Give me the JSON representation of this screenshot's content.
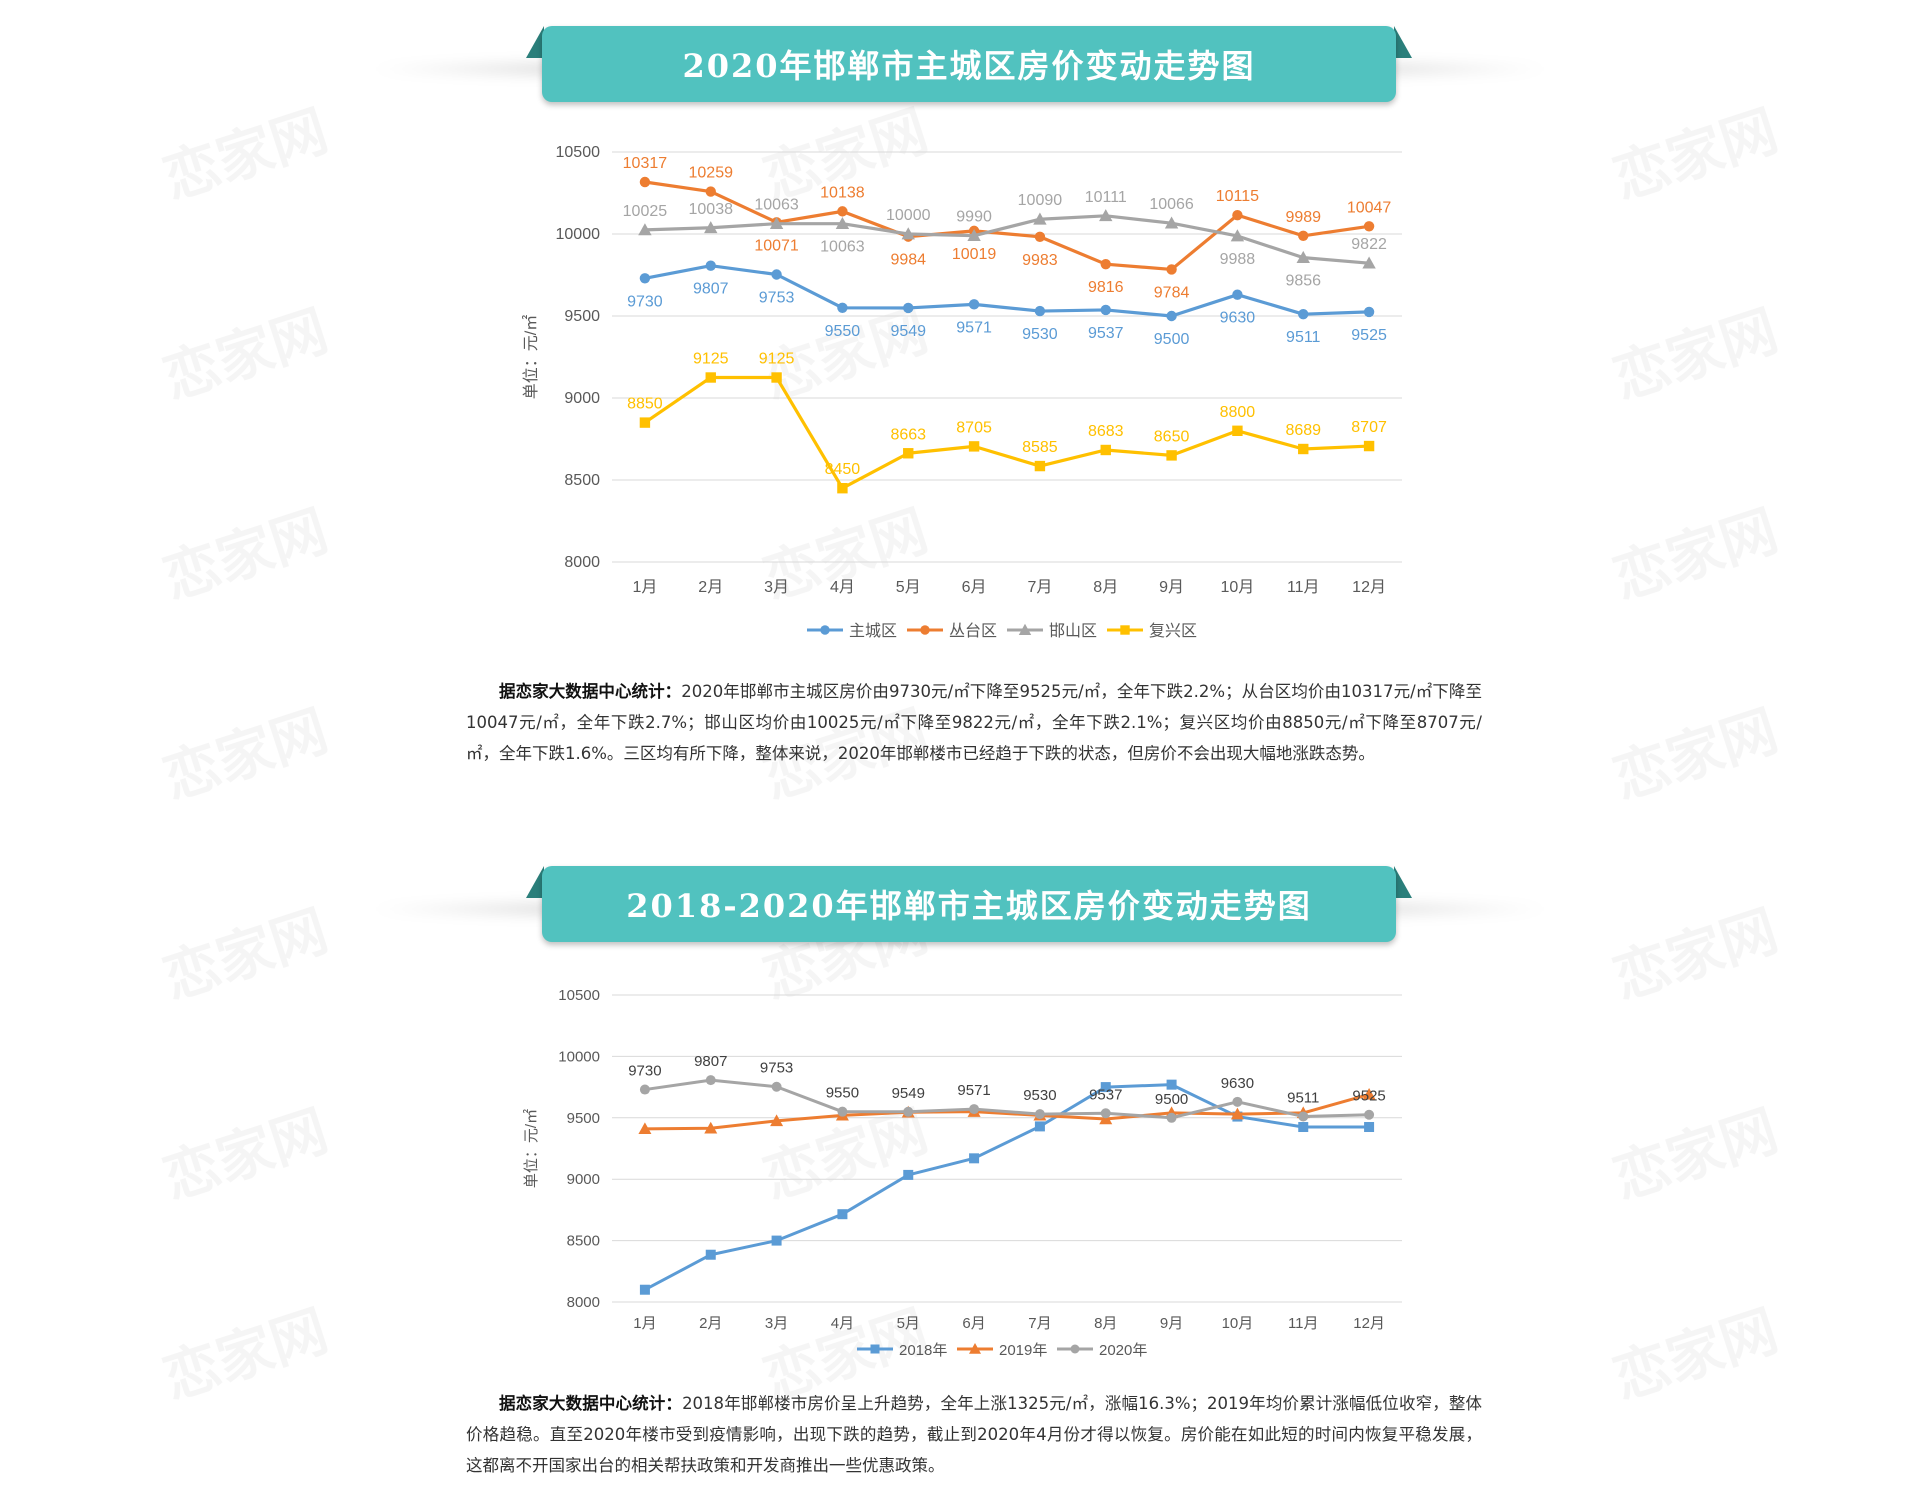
{
  "watermark": "恋家网",
  "sections": [
    {
      "title": "2020年邯郸市主城区房价变动走势图",
      "paragraph": {
        "lead": "据恋家大数据中心统计：",
        "text": "2020年邯郸市主城区房价由9730元/㎡下降至9525元/㎡，全年下跌2.2%；从台区均价由10317元/㎡下降至10047元/㎡，全年下跌2.7%；邯山区均价由10025元/㎡下降至9822元/㎡，全年下跌2.1%；复兴区均价由8850元/㎡下降至8707元/㎡，全年下跌1.6%。三区均有所下降，整体来说，2020年邯郸楼市已经趋于下跌的状态，但房价不会出现大幅地涨跌态势。"
      }
    },
    {
      "title": "2018-2020年邯郸市主城区房价变动走势图",
      "paragraph": {
        "lead": "据恋家大数据中心统计：",
        "text": "2018年邯郸楼市房价呈上升趋势，全年上涨1325元/㎡，涨幅16.3%；2019年均价累计涨幅低位收窄，整体价格趋稳。直至2020年楼市受到疫情影响，出现下跌的趋势，截止到2020年4月份才得以恢复。房价能在如此短的时间内恢复平稳发展，这都离不开国家出台的相关帮扶政策和开发商推出一些优惠政策。"
      }
    }
  ],
  "chart_data": [
    {
      "type": "line",
      "ylabel": "单位：元/㎡",
      "ylim": [
        8000,
        10500
      ],
      "yticks": [
        8000,
        8500,
        9000,
        9500,
        10000,
        10500
      ],
      "grid": true,
      "legend_position": "bottom",
      "categories": [
        "1月",
        "2月",
        "3月",
        "4月",
        "5月",
        "6月",
        "7月",
        "8月",
        "9月",
        "10月",
        "11月",
        "12月"
      ],
      "series": [
        {
          "name": "主城区",
          "color": "#5b9bd5",
          "marker": "circle",
          "values": [
            9730,
            9807,
            9753,
            9550,
            9549,
            9571,
            9530,
            9537,
            9500,
            9630,
            9511,
            9525
          ],
          "label_pos": [
            "b",
            "b",
            "b",
            "b",
            "b",
            "b",
            "b",
            "b",
            "b",
            "b",
            "b",
            "b"
          ]
        },
        {
          "name": "丛台区",
          "color": "#ed7d31",
          "marker": "circle",
          "values": [
            10317,
            10259,
            10071,
            10138,
            9984,
            10019,
            9983,
            9816,
            9784,
            10115,
            9989,
            10047
          ],
          "label_pos": [
            "a",
            "a",
            "b",
            "a",
            "b",
            "b",
            "b",
            "b",
            "b",
            "a",
            "a",
            "a"
          ]
        },
        {
          "name": "邯山区",
          "color": "#a5a5a5",
          "marker": "triangle",
          "values": [
            10025,
            10038,
            10063,
            10063,
            10000,
            9990,
            10090,
            10111,
            10066,
            9988,
            9856,
            9822
          ],
          "label_pos": [
            "a",
            "a",
            "a",
            "b",
            "a",
            "a",
            "a",
            "a",
            "a",
            "b",
            "b",
            "a"
          ]
        },
        {
          "name": "复兴区",
          "color": "#ffc000",
          "marker": "square",
          "values": [
            8850,
            9125,
            9125,
            8450,
            8663,
            8705,
            8585,
            8683,
            8650,
            8800,
            8689,
            8707
          ],
          "label_pos": [
            "a",
            "a",
            "a",
            "a",
            "a",
            "a",
            "a",
            "a",
            "a",
            "a",
            "a",
            "a"
          ]
        }
      ]
    },
    {
      "type": "line",
      "ylabel": "单位：元/㎡",
      "ylim": [
        8000,
        10500
      ],
      "yticks": [
        8000,
        8500,
        9000,
        9500,
        10000,
        10500
      ],
      "grid": true,
      "legend_position": "bottom",
      "categories": [
        "1月",
        "2月",
        "3月",
        "4月",
        "5月",
        "6月",
        "7月",
        "8月",
        "9月",
        "10月",
        "11月",
        "12月"
      ],
      "series": [
        {
          "name": "2018年",
          "color": "#5b9bd5",
          "marker": "square",
          "values": [
            8100,
            8385,
            8500,
            8715,
            9035,
            9170,
            9430,
            9750,
            9770,
            9510,
            9425,
            9425
          ],
          "labels": false
        },
        {
          "name": "2019年",
          "color": "#ed7d31",
          "marker": "triangle",
          "values": [
            9410,
            9415,
            9475,
            9520,
            9545,
            9550,
            9520,
            9490,
            9540,
            9530,
            9540,
            9690
          ],
          "labels": false
        },
        {
          "name": "2020年",
          "color": "#a5a5a5",
          "marker": "circle",
          "values": [
            9730,
            9807,
            9753,
            9550,
            9549,
            9571,
            9530,
            9537,
            9500,
            9630,
            9511,
            9525
          ],
          "labels": true
        }
      ]
    }
  ]
}
